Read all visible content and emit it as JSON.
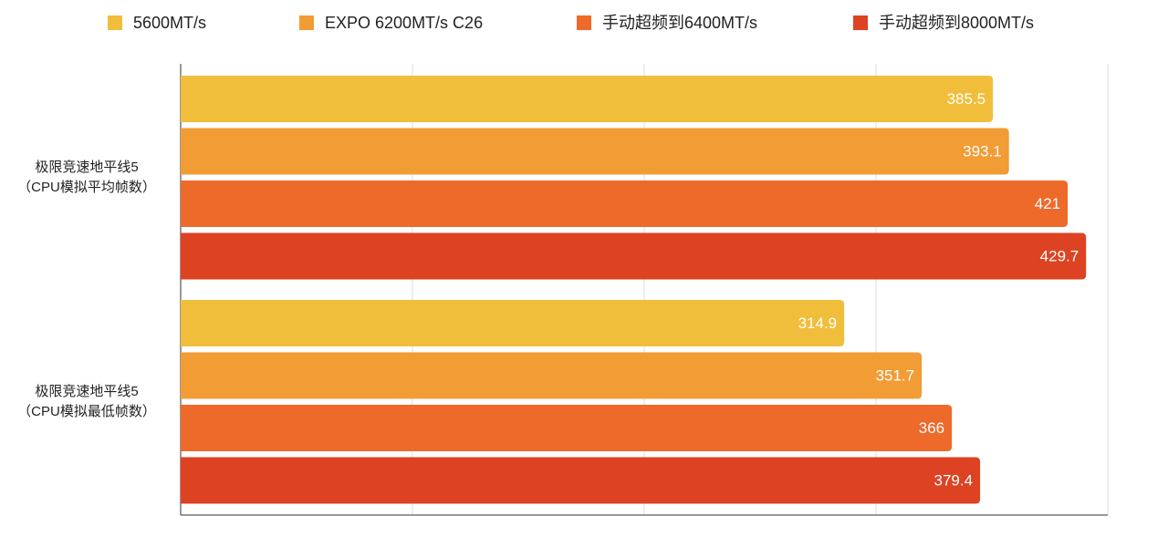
{
  "chart_data": {
    "type": "barh",
    "categories": [
      "极限竞速地平线5\n（CPU模拟平均帧数）",
      "极限竞速地平线5\n（CPU模拟最低帧数）"
    ],
    "series": [
      {
        "name": "5600MT/s",
        "color": "#f0be3a",
        "values": [
          385.5,
          314.9
        ]
      },
      {
        "name": "EXPO 6200MT/s C26",
        "color": "#f29c35",
        "values": [
          393.1,
          351.7
        ]
      },
      {
        "name": "手动超频到6400MT/s",
        "color": "#ee6a2a",
        "values": [
          421,
          366
        ]
      },
      {
        "name": "手动超频到8000MT/s",
        "color": "#dd4222",
        "values": [
          429.7,
          379.4
        ]
      }
    ],
    "xlim": [
      0,
      440
    ],
    "xticks": [
      0,
      110,
      220,
      330,
      440
    ],
    "grid": true
  }
}
